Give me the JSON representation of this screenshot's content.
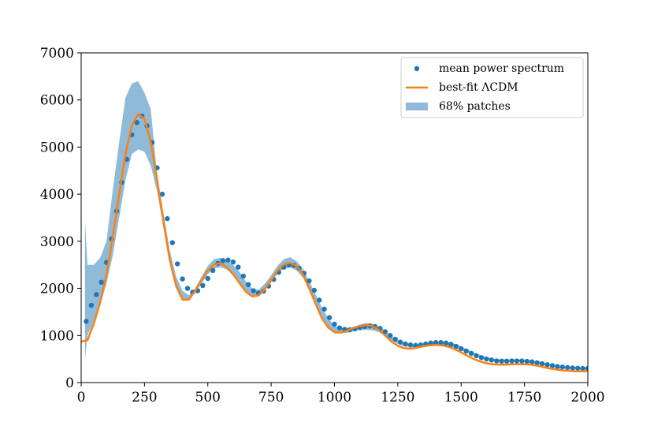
{
  "chart_data": {
    "type": "line",
    "xlim": [
      0,
      2000
    ],
    "ylim": [
      0,
      7000
    ],
    "xticks": [
      0,
      250,
      500,
      750,
      1000,
      1250,
      1500,
      1750,
      2000
    ],
    "yticks": [
      0,
      1000,
      2000,
      3000,
      4000,
      5000,
      6000,
      7000
    ],
    "legend": "upper right",
    "series": [
      {
        "name": "mean power spectrum",
        "kind": "scatter",
        "color": "#1f77b4",
        "x": [
          20,
          40,
          60,
          80,
          100,
          120,
          140,
          160,
          180,
          200,
          220,
          240,
          260,
          280,
          300,
          320,
          340,
          360,
          380,
          400,
          420,
          440,
          460,
          480,
          500,
          520,
          540,
          560,
          580,
          600,
          620,
          640,
          660,
          680,
          700,
          720,
          740,
          760,
          780,
          800,
          820,
          840,
          860,
          880,
          900,
          920,
          940,
          960,
          980,
          1000,
          1020,
          1040,
          1060,
          1080,
          1100,
          1120,
          1140,
          1160,
          1180,
          1200,
          1220,
          1240,
          1260,
          1280,
          1300,
          1320,
          1340,
          1360,
          1380,
          1400,
          1420,
          1440,
          1460,
          1480,
          1500,
          1520,
          1540,
          1560,
          1580,
          1600,
          1620,
          1640,
          1660,
          1680,
          1700,
          1720,
          1740,
          1760,
          1780,
          1800,
          1820,
          1840,
          1860,
          1880,
          1900,
          1920,
          1940,
          1960,
          1980,
          2000
        ],
        "values": [
          1300,
          1640,
          1870,
          2130,
          2550,
          3050,
          3640,
          4250,
          4740,
          5260,
          5520,
          5660,
          5450,
          5100,
          4560,
          4000,
          3480,
          2970,
          2520,
          2200,
          2000,
          1920,
          1950,
          2060,
          2210,
          2380,
          2530,
          2590,
          2600,
          2560,
          2450,
          2260,
          2080,
          1950,
          1900,
          1940,
          2050,
          2190,
          2340,
          2450,
          2500,
          2490,
          2430,
          2320,
          2160,
          1960,
          1750,
          1560,
          1380,
          1240,
          1160,
          1130,
          1120,
          1140,
          1170,
          1190,
          1200,
          1190,
          1150,
          1080,
          1000,
          920,
          860,
          820,
          800,
          790,
          800,
          820,
          840,
          850,
          850,
          840,
          810,
          770,
          720,
          670,
          620,
          570,
          530,
          500,
          480,
          460,
          455,
          455,
          460,
          460,
          460,
          450,
          440,
          420,
          400,
          380,
          360,
          340,
          330,
          320,
          310,
          305,
          300,
          300
        ]
      },
      {
        "name": "best-fit ΛCDM",
        "kind": "line",
        "color": "#ff7f0e",
        "x": [
          0,
          25,
          50,
          75,
          100,
          125,
          150,
          175,
          200,
          225,
          250,
          275,
          300,
          325,
          350,
          375,
          400,
          425,
          450,
          475,
          500,
          525,
          550,
          575,
          600,
          625,
          650,
          675,
          700,
          725,
          750,
          775,
          800,
          825,
          850,
          875,
          900,
          925,
          950,
          975,
          1000,
          1025,
          1050,
          1075,
          1100,
          1125,
          1150,
          1175,
          1200,
          1225,
          1250,
          1275,
          1300,
          1325,
          1350,
          1375,
          1400,
          1425,
          1450,
          1475,
          1500,
          1525,
          1550,
          1575,
          1600,
          1625,
          1650,
          1675,
          1700,
          1725,
          1750,
          1775,
          1800,
          1825,
          1850,
          1875,
          1900,
          1925,
          1950,
          1975,
          2000
        ],
        "values": [
          870,
          900,
          1250,
          1700,
          2300,
          3100,
          4000,
          4850,
          5450,
          5700,
          5600,
          5100,
          4300,
          3400,
          2600,
          2050,
          1760,
          1760,
          1950,
          2170,
          2380,
          2510,
          2530,
          2450,
          2300,
          2110,
          1930,
          1830,
          1850,
          1980,
          2170,
          2380,
          2510,
          2540,
          2480,
          2300,
          2000,
          1680,
          1370,
          1170,
          1070,
          1060,
          1100,
          1160,
          1200,
          1220,
          1200,
          1120,
          1000,
          870,
          780,
          730,
          720,
          740,
          770,
          790,
          800,
          790,
          760,
          710,
          640,
          570,
          500,
          450,
          410,
          390,
          380,
          380,
          390,
          390,
          390,
          380,
          360,
          330,
          300,
          280,
          260,
          250,
          240,
          240,
          240
        ]
      },
      {
        "name": "68% patches",
        "kind": "band",
        "color": "#8fbbd9",
        "x": [
          15,
          25,
          50,
          75,
          100,
          125,
          150,
          175,
          200,
          225,
          250,
          275,
          300,
          325,
          350,
          375,
          400,
          425,
          450,
          475,
          500,
          525,
          550,
          575,
          600,
          625,
          650,
          675,
          700,
          725,
          750,
          775,
          800,
          825,
          850,
          875,
          900,
          925,
          950,
          975,
          1000,
          1025,
          1050,
          1075,
          1100,
          1125,
          1150,
          1175,
          1200,
          1225,
          1250,
          1275,
          1300,
          1325,
          1350,
          1375,
          1400,
          1425,
          1450,
          1475,
          1500,
          1525,
          1550,
          1575,
          1600,
          1625,
          1650,
          1675,
          1700,
          1725,
          1750,
          1775,
          1800,
          1825,
          1850,
          1875,
          1900,
          1925,
          1950,
          1975,
          2000
        ],
        "upper": [
          3450,
          2500,
          2500,
          2650,
          3000,
          4100,
          5100,
          6050,
          6350,
          6400,
          6150,
          5800,
          4400,
          3600,
          2800,
          2250,
          1950,
          1850,
          2000,
          2250,
          2480,
          2620,
          2650,
          2600,
          2500,
          2350,
          2150,
          2000,
          1970,
          2100,
          2280,
          2480,
          2620,
          2660,
          2580,
          2420,
          2150,
          1880,
          1600,
          1370,
          1200,
          1150,
          1150,
          1180,
          1230,
          1260,
          1250,
          1190,
          1100,
          990,
          900,
          840,
          810,
          810,
          830,
          860,
          870,
          870,
          860,
          820,
          760,
          700,
          640,
          590,
          540,
          510,
          490,
          490,
          490,
          490,
          480,
          470,
          450,
          420,
          390,
          360,
          340,
          330,
          320,
          320,
          330
        ],
        "lower": [
          500,
          1000,
          1300,
          1650,
          2100,
          2700,
          3500,
          4300,
          4850,
          4950,
          4900,
          4600,
          4050,
          3300,
          2550,
          2000,
          1780,
          1770,
          1900,
          2100,
          2300,
          2420,
          2450,
          2400,
          2270,
          2100,
          1920,
          1830,
          1850,
          1960,
          2130,
          2310,
          2420,
          2440,
          2380,
          2230,
          1980,
          1680,
          1400,
          1200,
          1080,
          1050,
          1060,
          1090,
          1110,
          1120,
          1110,
          1070,
          1000,
          900,
          820,
          770,
          750,
          750,
          770,
          790,
          800,
          800,
          780,
          740,
          690,
          630,
          580,
          530,
          490,
          460,
          445,
          440,
          440,
          440,
          435,
          425,
          400,
          380,
          350,
          330,
          310,
          300,
          290,
          285,
          285
        ]
      }
    ]
  }
}
